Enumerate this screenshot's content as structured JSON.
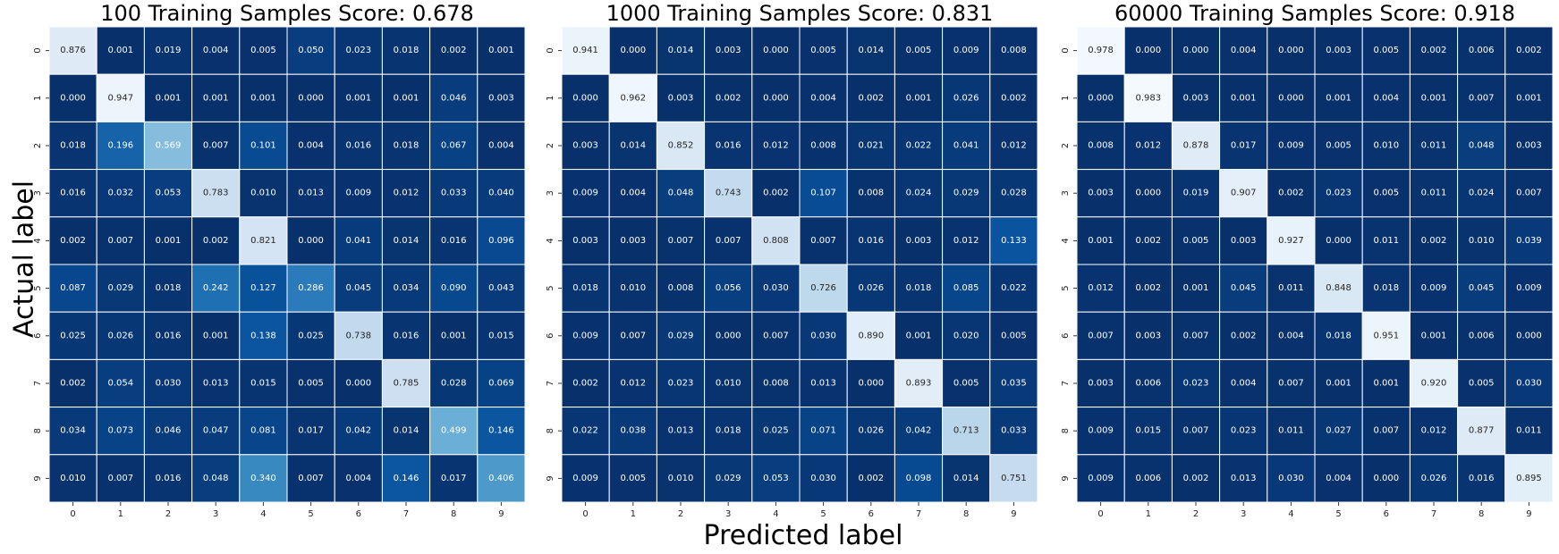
{
  "chart_data": [
    {
      "type": "heatmap",
      "title": "100 Training Samples Score: 0.678",
      "x_categories": [
        "0",
        "1",
        "2",
        "3",
        "4",
        "5",
        "6",
        "7",
        "8",
        "9"
      ],
      "y_categories": [
        "0",
        "1",
        "2",
        "3",
        "4",
        "5",
        "6",
        "7",
        "8",
        "9"
      ],
      "colormap": "Blues_r",
      "vmin": 0,
      "vmax": 1,
      "values": [
        [
          "0.876",
          "0.001",
          "0.019",
          "0.004",
          "0.005",
          "0.050",
          "0.023",
          "0.018",
          "0.002",
          "0.001"
        ],
        [
          "0.000",
          "0.947",
          "0.001",
          "0.001",
          "0.001",
          "0.000",
          "0.001",
          "0.001",
          "0.046",
          "0.003"
        ],
        [
          "0.018",
          "0.196",
          "0.569",
          "0.007",
          "0.101",
          "0.004",
          "0.016",
          "0.018",
          "0.067",
          "0.004"
        ],
        [
          "0.016",
          "0.032",
          "0.053",
          "0.783",
          "0.010",
          "0.013",
          "0.009",
          "0.012",
          "0.033",
          "0.040"
        ],
        [
          "0.002",
          "0.007",
          "0.001",
          "0.002",
          "0.821",
          "0.000",
          "0.041",
          "0.014",
          "0.016",
          "0.096"
        ],
        [
          "0.087",
          "0.029",
          "0.018",
          "0.242",
          "0.127",
          "0.286",
          "0.045",
          "0.034",
          "0.090",
          "0.043"
        ],
        [
          "0.025",
          "0.026",
          "0.016",
          "0.001",
          "0.138",
          "0.025",
          "0.738",
          "0.016",
          "0.001",
          "0.015"
        ],
        [
          "0.002",
          "0.054",
          "0.030",
          "0.013",
          "0.015",
          "0.005",
          "0.000",
          "0.785",
          "0.028",
          "0.069"
        ],
        [
          "0.034",
          "0.073",
          "0.046",
          "0.047",
          "0.081",
          "0.017",
          "0.042",
          "0.014",
          "0.499",
          "0.146"
        ],
        [
          "0.010",
          "0.007",
          "0.016",
          "0.048",
          "0.340",
          "0.007",
          "0.004",
          "0.146",
          "0.017",
          "0.406"
        ]
      ]
    },
    {
      "type": "heatmap",
      "title": "1000 Training Samples Score: 0.831",
      "x_categories": [
        "0",
        "1",
        "2",
        "3",
        "4",
        "5",
        "6",
        "7",
        "8",
        "9"
      ],
      "y_categories": [
        "0",
        "1",
        "2",
        "3",
        "4",
        "5",
        "6",
        "7",
        "8",
        "9"
      ],
      "colormap": "Blues_r",
      "vmin": 0,
      "vmax": 1,
      "values": [
        [
          "0.941",
          "0.000",
          "0.014",
          "0.003",
          "0.000",
          "0.005",
          "0.014",
          "0.005",
          "0.009",
          "0.008"
        ],
        [
          "0.000",
          "0.962",
          "0.003",
          "0.002",
          "0.000",
          "0.004",
          "0.002",
          "0.001",
          "0.026",
          "0.002"
        ],
        [
          "0.003",
          "0.014",
          "0.852",
          "0.016",
          "0.012",
          "0.008",
          "0.021",
          "0.022",
          "0.041",
          "0.012"
        ],
        [
          "0.009",
          "0.004",
          "0.048",
          "0.743",
          "0.002",
          "0.107",
          "0.008",
          "0.024",
          "0.029",
          "0.028"
        ],
        [
          "0.003",
          "0.003",
          "0.007",
          "0.007",
          "0.808",
          "0.007",
          "0.016",
          "0.003",
          "0.012",
          "0.133"
        ],
        [
          "0.018",
          "0.010",
          "0.008",
          "0.056",
          "0.030",
          "0.726",
          "0.026",
          "0.018",
          "0.085",
          "0.022"
        ],
        [
          "0.009",
          "0.007",
          "0.029",
          "0.000",
          "0.007",
          "0.030",
          "0.890",
          "0.001",
          "0.020",
          "0.005"
        ],
        [
          "0.002",
          "0.012",
          "0.023",
          "0.010",
          "0.008",
          "0.013",
          "0.000",
          "0.893",
          "0.005",
          "0.035"
        ],
        [
          "0.022",
          "0.038",
          "0.013",
          "0.018",
          "0.025",
          "0.071",
          "0.026",
          "0.042",
          "0.713",
          "0.033"
        ],
        [
          "0.009",
          "0.005",
          "0.010",
          "0.029",
          "0.053",
          "0.030",
          "0.002",
          "0.098",
          "0.014",
          "0.751"
        ]
      ]
    },
    {
      "type": "heatmap",
      "title": "60000 Training Samples Score: 0.918",
      "x_categories": [
        "0",
        "1",
        "2",
        "3",
        "4",
        "5",
        "6",
        "7",
        "8",
        "9"
      ],
      "y_categories": [
        "0",
        "1",
        "2",
        "3",
        "4",
        "5",
        "6",
        "7",
        "8",
        "9"
      ],
      "colormap": "Blues_r",
      "vmin": 0,
      "vmax": 1,
      "values": [
        [
          "0.978",
          "0.000",
          "0.000",
          "0.004",
          "0.000",
          "0.003",
          "0.005",
          "0.002",
          "0.006",
          "0.002"
        ],
        [
          "0.000",
          "0.983",
          "0.003",
          "0.001",
          "0.000",
          "0.001",
          "0.004",
          "0.001",
          "0.007",
          "0.001"
        ],
        [
          "0.008",
          "0.012",
          "0.878",
          "0.017",
          "0.009",
          "0.005",
          "0.010",
          "0.011",
          "0.048",
          "0.003"
        ],
        [
          "0.003",
          "0.000",
          "0.019",
          "0.907",
          "0.002",
          "0.023",
          "0.005",
          "0.011",
          "0.024",
          "0.007"
        ],
        [
          "0.001",
          "0.002",
          "0.005",
          "0.003",
          "0.927",
          "0.000",
          "0.011",
          "0.002",
          "0.010",
          "0.039"
        ],
        [
          "0.012",
          "0.002",
          "0.001",
          "0.045",
          "0.011",
          "0.848",
          "0.018",
          "0.009",
          "0.045",
          "0.009"
        ],
        [
          "0.007",
          "0.003",
          "0.007",
          "0.002",
          "0.004",
          "0.018",
          "0.951",
          "0.001",
          "0.006",
          "0.000"
        ],
        [
          "0.003",
          "0.006",
          "0.023",
          "0.004",
          "0.007",
          "0.001",
          "0.001",
          "0.920",
          "0.005",
          "0.030"
        ],
        [
          "0.009",
          "0.015",
          "0.007",
          "0.023",
          "0.011",
          "0.027",
          "0.007",
          "0.012",
          "0.877",
          "0.011"
        ],
        [
          "0.009",
          "0.006",
          "0.002",
          "0.013",
          "0.030",
          "0.004",
          "0.000",
          "0.026",
          "0.016",
          "0.895"
        ]
      ]
    }
  ],
  "shared_axes": {
    "xlabel": "Predicted label",
    "ylabel": "Actual label"
  }
}
